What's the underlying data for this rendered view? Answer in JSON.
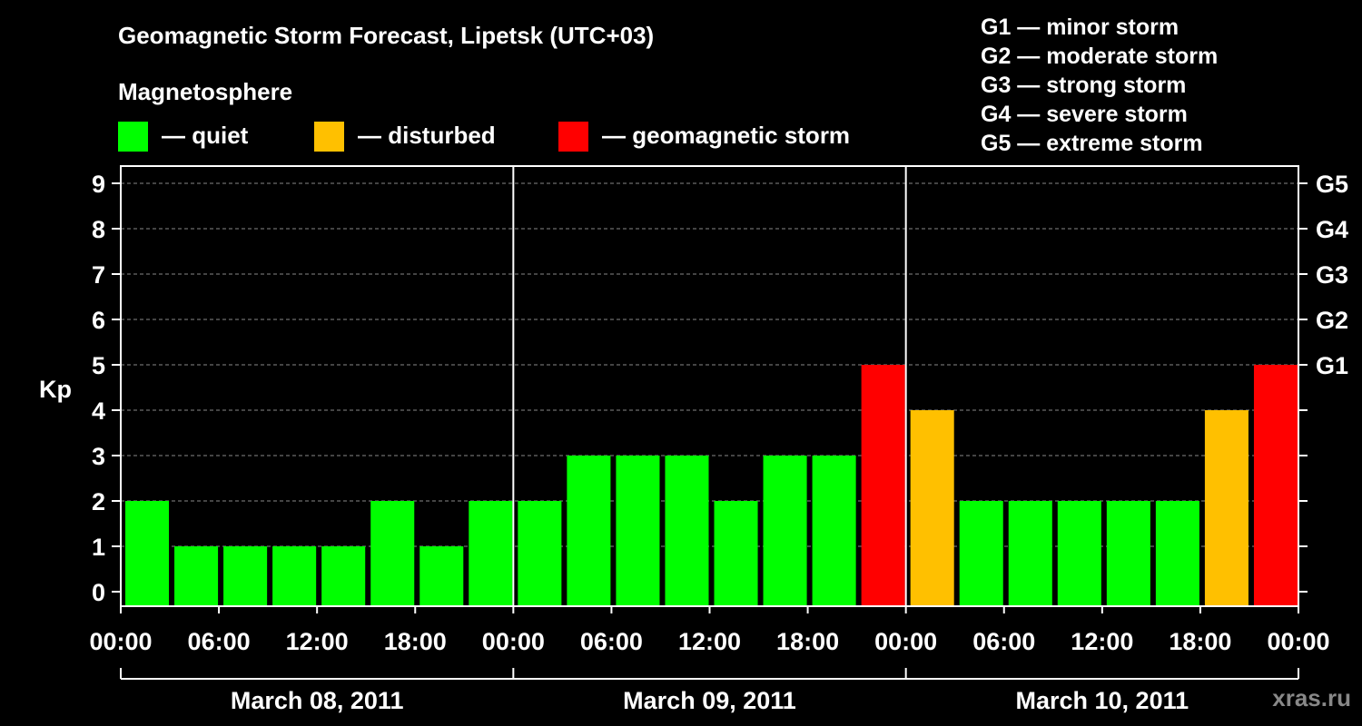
{
  "title": "Geomagnetic Storm Forecast, Lipetsk (UTC+03)",
  "subtitle": "Magnetosphere",
  "legend": [
    {
      "label": "— quiet",
      "color": "#00ff00"
    },
    {
      "label": "— disturbed",
      "color": "#ffc000"
    },
    {
      "label": "— geomagnetic storm",
      "color": "#ff0000"
    }
  ],
  "g_levels": [
    "G1 — minor storm",
    "G2 — moderate storm",
    "G3 — strong storm",
    "G4 — severe storm",
    "G5 — extreme storm"
  ],
  "watermark": "xras.ru",
  "chart_data": {
    "type": "bar",
    "ylabel": "Kp",
    "ylim": [
      0,
      9
    ],
    "yticks": [
      0,
      1,
      2,
      3,
      4,
      5,
      6,
      7,
      8,
      9
    ],
    "right_axis_labels": [
      {
        "kp": 5,
        "label": "G1"
      },
      {
        "kp": 6,
        "label": "G2"
      },
      {
        "kp": 7,
        "label": "G3"
      },
      {
        "kp": 8,
        "label": "G4"
      },
      {
        "kp": 9,
        "label": "G5"
      }
    ],
    "x_tick_labels": [
      "00:00",
      "06:00",
      "12:00",
      "18:00",
      "00:00",
      "06:00",
      "12:00",
      "18:00",
      "00:00",
      "06:00",
      "12:00",
      "18:00",
      "00:00"
    ],
    "days": [
      "March 08, 2011",
      "March 09, 2011",
      "March 10, 2011"
    ],
    "grid": true,
    "series": [
      {
        "values": [
          2,
          1,
          1,
          1,
          1,
          2,
          1,
          2,
          2,
          3,
          3,
          3,
          2,
          3,
          3,
          5,
          4,
          2,
          2,
          2,
          2,
          2,
          4,
          5
        ],
        "status": [
          "quiet",
          "quiet",
          "quiet",
          "quiet",
          "quiet",
          "quiet",
          "quiet",
          "quiet",
          "quiet",
          "quiet",
          "quiet",
          "quiet",
          "quiet",
          "quiet",
          "quiet",
          "storm",
          "disturbed",
          "quiet",
          "quiet",
          "quiet",
          "quiet",
          "quiet",
          "disturbed",
          "storm"
        ]
      }
    ],
    "status_colors": {
      "quiet": "#00ff00",
      "disturbed": "#ffc000",
      "storm": "#ff0000"
    }
  }
}
